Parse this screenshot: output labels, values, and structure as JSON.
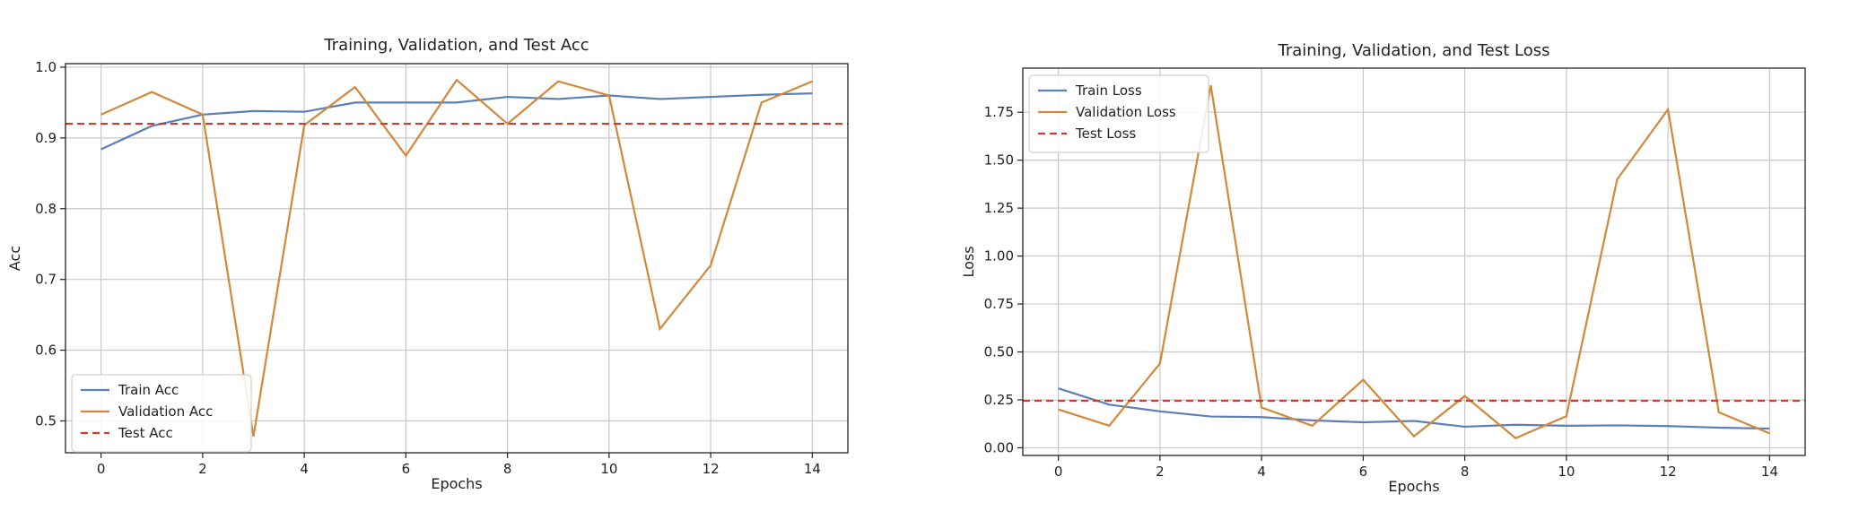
{
  "chart_data": [
    {
      "type": "line",
      "title": "Training, Validation, and Test Acc",
      "xlabel": "Epochs",
      "ylabel": "Acc",
      "xlim": [
        -0.7,
        14.7
      ],
      "ylim": [
        0.455,
        1.005
      ],
      "xticks": [
        0,
        2,
        4,
        6,
        8,
        10,
        12,
        14
      ],
      "yticks": [
        0.5,
        0.6,
        0.7,
        0.8,
        0.9,
        1.0
      ],
      "ytick_labels": [
        "0.5",
        "0.6",
        "0.7",
        "0.8",
        "0.9",
        "1.0"
      ],
      "grid": true,
      "legend_position": "bottom-left",
      "x": [
        0,
        1,
        2,
        3,
        4,
        5,
        6,
        7,
        8,
        9,
        10,
        11,
        12,
        13,
        14
      ],
      "series": [
        {
          "name": "Train Acc",
          "style": "solid",
          "color": "#5b7fb6",
          "values": [
            0.884,
            0.917,
            0.933,
            0.938,
            0.937,
            0.95,
            0.95,
            0.95,
            0.958,
            0.955,
            0.96,
            0.955,
            0.958,
            0.961,
            0.963
          ]
        },
        {
          "name": "Validation Acc",
          "style": "solid",
          "color": "#d2883a",
          "values": [
            0.933,
            0.965,
            0.933,
            0.478,
            0.918,
            0.972,
            0.875,
            0.982,
            0.92,
            0.98,
            0.96,
            0.63,
            0.72,
            0.95,
            0.98
          ]
        },
        {
          "name": "Test Acc",
          "style": "dashed",
          "color": "#cc3b32",
          "constant": 0.92
        }
      ]
    },
    {
      "type": "line",
      "title": "Training, Validation, and Test Loss",
      "xlabel": "Epochs",
      "ylabel": "Loss",
      "xlim": [
        -0.7,
        14.7
      ],
      "ylim": [
        -0.04,
        1.98
      ],
      "xticks": [
        0,
        2,
        4,
        6,
        8,
        10,
        12,
        14
      ],
      "yticks": [
        0,
        0.25,
        0.5,
        0.75,
        1.0,
        1.25,
        1.5,
        1.75
      ],
      "ytick_labels": [
        "0.00",
        "0.25",
        "0.50",
        "0.75",
        "1.00",
        "1.25",
        "1.50",
        "1.75"
      ],
      "grid": true,
      "legend_position": "top-left",
      "x": [
        0,
        1,
        2,
        3,
        4,
        5,
        6,
        7,
        8,
        9,
        10,
        11,
        12,
        13,
        14
      ],
      "series": [
        {
          "name": "Train Loss",
          "style": "solid",
          "color": "#5b7fb6",
          "values": [
            0.31,
            0.225,
            0.19,
            0.163,
            0.16,
            0.143,
            0.133,
            0.14,
            0.11,
            0.12,
            0.115,
            0.117,
            0.113,
            0.105,
            0.1
          ]
        },
        {
          "name": "Validation Loss",
          "style": "solid",
          "color": "#d2883a",
          "values": [
            0.2,
            0.115,
            0.44,
            1.89,
            0.21,
            0.115,
            0.355,
            0.06,
            0.27,
            0.05,
            0.165,
            1.4,
            1.765,
            0.185,
            0.075
          ]
        },
        {
          "name": "Test Loss",
          "style": "dashed",
          "color": "#cc3b32",
          "constant": 0.245
        }
      ]
    }
  ]
}
